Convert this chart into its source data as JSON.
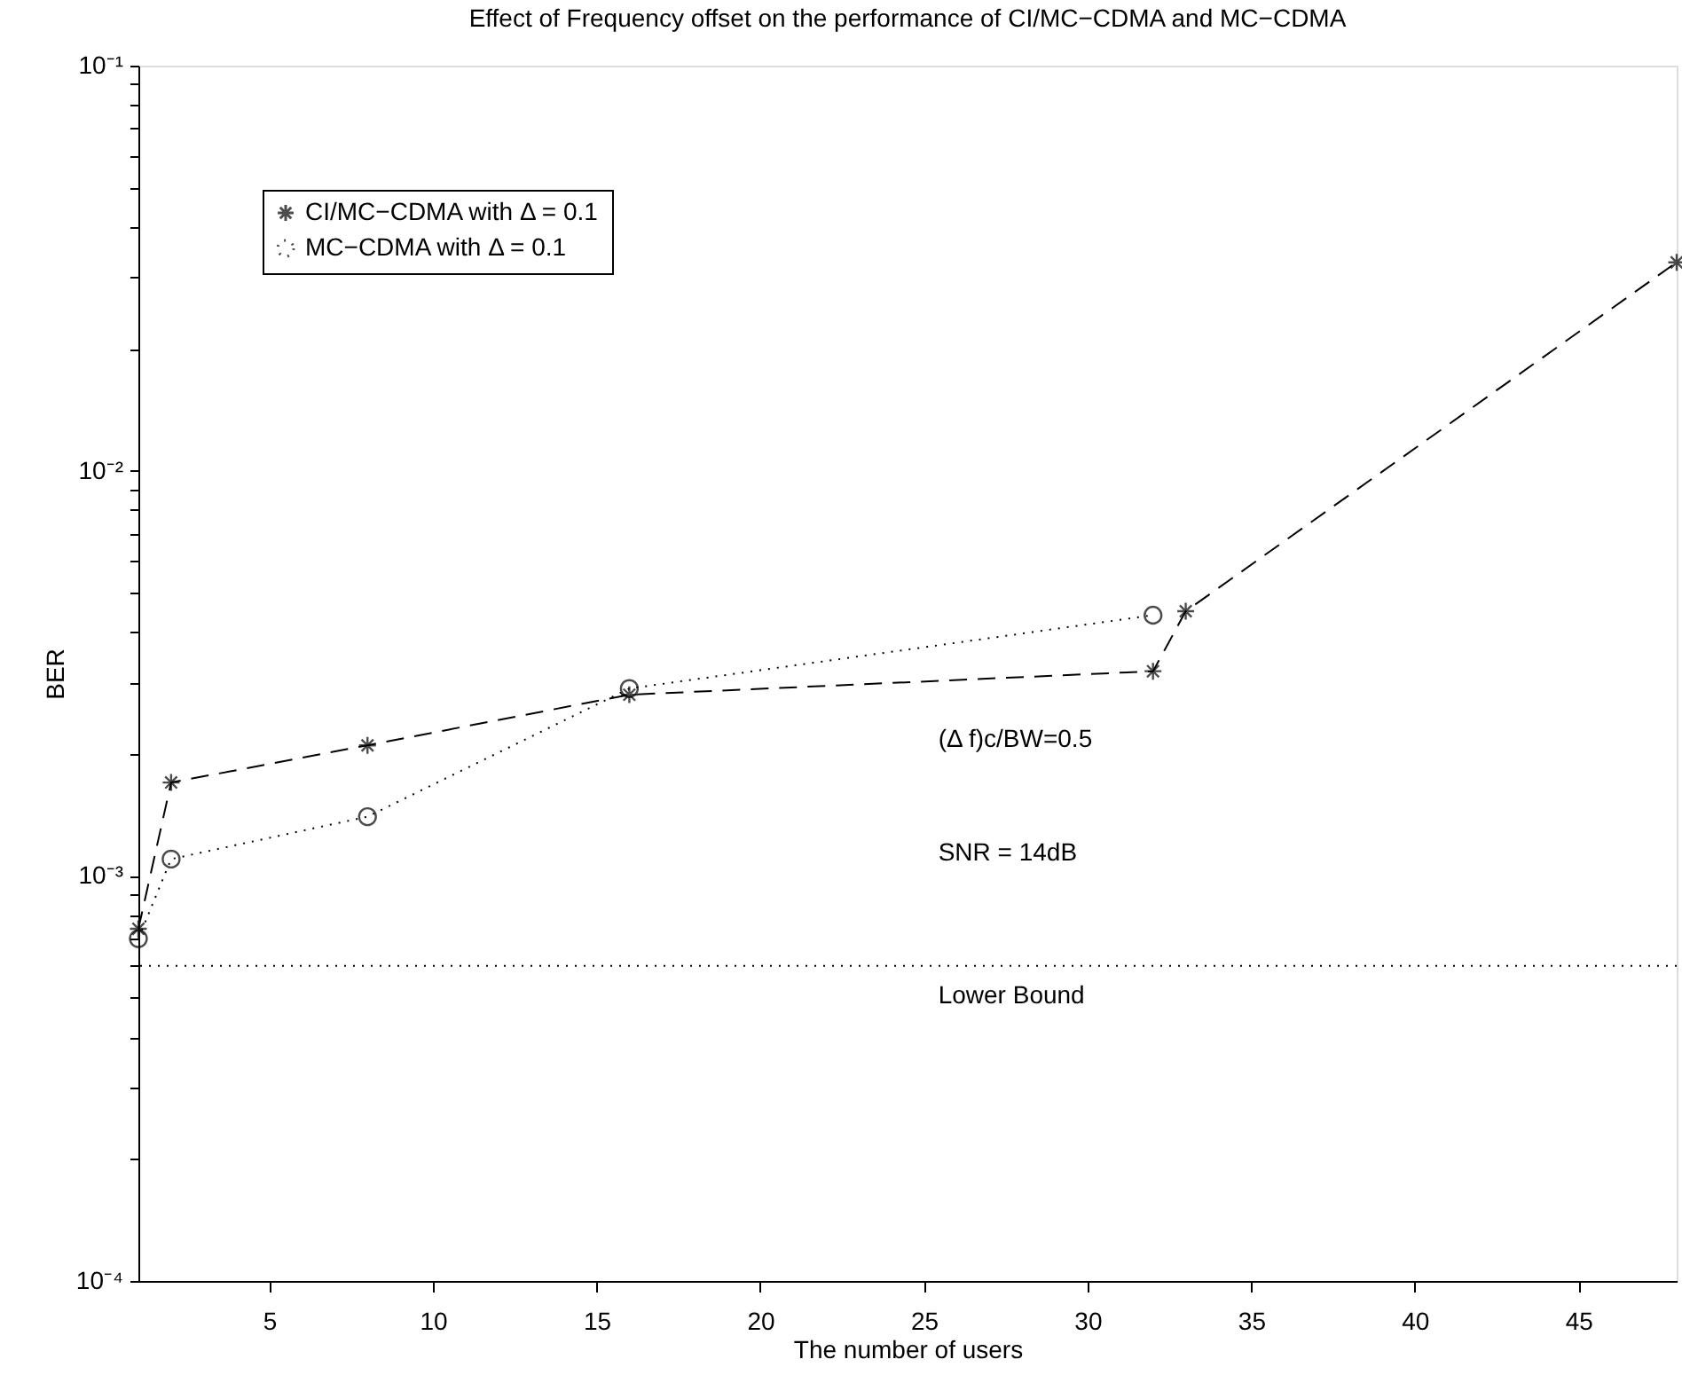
{
  "chart_data": {
    "type": "line",
    "title": "Effect of Frequency offset on the performance of CI/MC−CDMA and MC−CDMA",
    "xlabel": "The number of users",
    "ylabel": "BER",
    "x": [
      1,
      2,
      8,
      16,
      32,
      33,
      48
    ],
    "series": [
      {
        "name": "CI/MC−CDMA with Δ = 0.1",
        "color": "#000000",
        "marker": "cross",
        "line_style": "dashed",
        "values": [
          0.00074,
          0.0017,
          0.0021,
          0.0028,
          0.0032,
          0.0045,
          0.0327
        ]
      },
      {
        "name": "MC−CDMA with Δ = 0.1",
        "color": "#000000",
        "marker": "circle",
        "line_style": "dotted",
        "x": [
          1,
          2,
          8,
          16,
          32
        ],
        "values": [
          0.0007,
          0.0011,
          0.0014,
          0.0029,
          0.0044
        ]
      }
    ],
    "log": "y",
    "xlim": [
      1,
      48
    ],
    "xticks": [
      5,
      10,
      15,
      20,
      25,
      30,
      35,
      40,
      45
    ],
    "ylim": [
      0.0001,
      0.1
    ],
    "yticks": [
      {
        "value": 0.0001,
        "label": "10⁻⁴"
      },
      {
        "value": 0.0002,
        "label": null
      },
      {
        "value": 0.0003,
        "label": null
      },
      {
        "value": 0.0004,
        "label": null
      },
      {
        "value": 0.0005,
        "label": null
      },
      {
        "value": 0.0006,
        "label": null
      },
      {
        "value": 0.0007,
        "label": null
      },
      {
        "value": 0.0008,
        "label": null
      },
      {
        "value": 0.0009,
        "label": null
      },
      {
        "value": 0.001,
        "label": "10⁻³"
      },
      {
        "value": 0.002,
        "label": null
      },
      {
        "value": 0.003,
        "label": null
      },
      {
        "value": 0.004,
        "label": null
      },
      {
        "value": 0.005,
        "label": null
      },
      {
        "value": 0.006,
        "label": null
      },
      {
        "value": 0.007,
        "label": null
      },
      {
        "value": 0.008,
        "label": null
      },
      {
        "value": 0.009,
        "label": null
      },
      {
        "value": 0.01,
        "label": "10⁻²"
      },
      {
        "value": 0.02,
        "label": null
      },
      {
        "value": 0.03,
        "label": null
      },
      {
        "value": 0.04,
        "label": null
      },
      {
        "value": 0.05,
        "label": null
      },
      {
        "value": 0.06,
        "label": null
      },
      {
        "value": 0.07,
        "label": null
      },
      {
        "value": 0.08,
        "label": null
      },
      {
        "value": 0.09,
        "label": null
      },
      {
        "value": 0.1,
        "label": "10⁻¹"
      }
    ],
    "ref_lines": [
      {
        "axis": "y",
        "value": 0.0006,
        "label": "Lower Bound",
        "color": "#000000",
        "line_style": "dotted"
      }
    ],
    "annotations": [
      "(Δ f)c/BW=0.5",
      "SNR = 14dB"
    ],
    "grid": false,
    "legend": "top left"
  }
}
